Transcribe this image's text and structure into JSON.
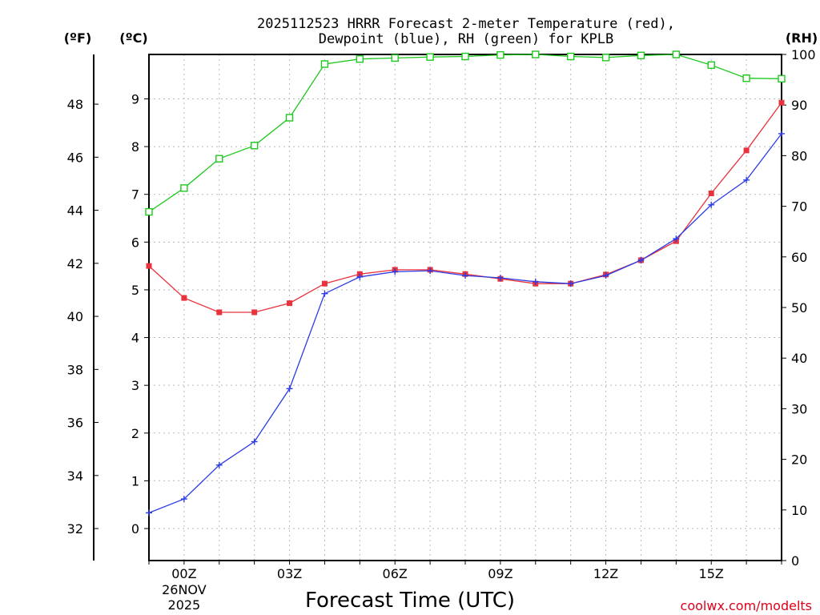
{
  "chart_data": {
    "type": "line",
    "title_lines": [
      "2025112523 HRRR Forecast 2-meter Temperature (red),",
      "Dewpoint (blue), RH (green) for KPLB"
    ],
    "xlabel": "Forecast Time (UTC)",
    "credit": "coolwx.com/modelts",
    "credit_color": "#e0001b",
    "units": {
      "fahrenheit": "(ºF)",
      "celsius": "(ºC)",
      "rh": "(RH)"
    },
    "x": [
      -1,
      0,
      1,
      2,
      3,
      4,
      5,
      6,
      7,
      8,
      9,
      10,
      11,
      12,
      13,
      14,
      15,
      16,
      17
    ],
    "xlim": [
      -1,
      17
    ],
    "x_ticks": [
      {
        "x": 0,
        "label": "00Z",
        "sublabels": [
          "26NOV",
          "2025"
        ]
      },
      {
        "x": 3,
        "label": "03Z"
      },
      {
        "x": 6,
        "label": "06Z"
      },
      {
        "x": 9,
        "label": "09Z"
      },
      {
        "x": 12,
        "label": "12Z"
      },
      {
        "x": 15,
        "label": "15Z"
      }
    ],
    "ylim_celsius": [
      -0.67,
      9.93
    ],
    "y_ticks_celsius": [
      0,
      1,
      2,
      3,
      4,
      5,
      6,
      7,
      8,
      9
    ],
    "y_ticks_fahrenheit": [
      32,
      34,
      36,
      38,
      40,
      42,
      44,
      46,
      48
    ],
    "ylim_rh": [
      0,
      100
    ],
    "y_ticks_rh": [
      0,
      10,
      20,
      30,
      40,
      50,
      60,
      70,
      80,
      90,
      100
    ],
    "grid": true,
    "series": [
      {
        "name": "Temperature",
        "axis": "celsius",
        "color": "#e8323c",
        "marker": "filled-square",
        "values": [
          5.5,
          4.83,
          4.53,
          4.53,
          4.72,
          5.13,
          5.33,
          5.42,
          5.42,
          5.33,
          5.23,
          5.13,
          5.13,
          5.32,
          5.62,
          6.02,
          7.02,
          7.92,
          8.92
        ]
      },
      {
        "name": "Dewpoint",
        "axis": "celsius",
        "color": "#2d3ce6",
        "marker": "plus",
        "values": [
          0.33,
          0.62,
          1.33,
          1.82,
          2.93,
          4.92,
          5.27,
          5.38,
          5.4,
          5.3,
          5.25,
          5.17,
          5.13,
          5.3,
          5.62,
          6.07,
          6.78,
          7.3,
          8.27
        ]
      },
      {
        "name": "RH",
        "axis": "rh",
        "color": "#1ec81e",
        "marker": "open-square",
        "values": [
          68.9,
          73.6,
          79.4,
          82.0,
          87.5,
          98.1,
          99.1,
          99.3,
          99.5,
          99.6,
          99.9,
          100.0,
          99.6,
          99.4,
          99.8,
          100.0,
          97.9,
          95.3,
          95.2
        ]
      }
    ]
  }
}
